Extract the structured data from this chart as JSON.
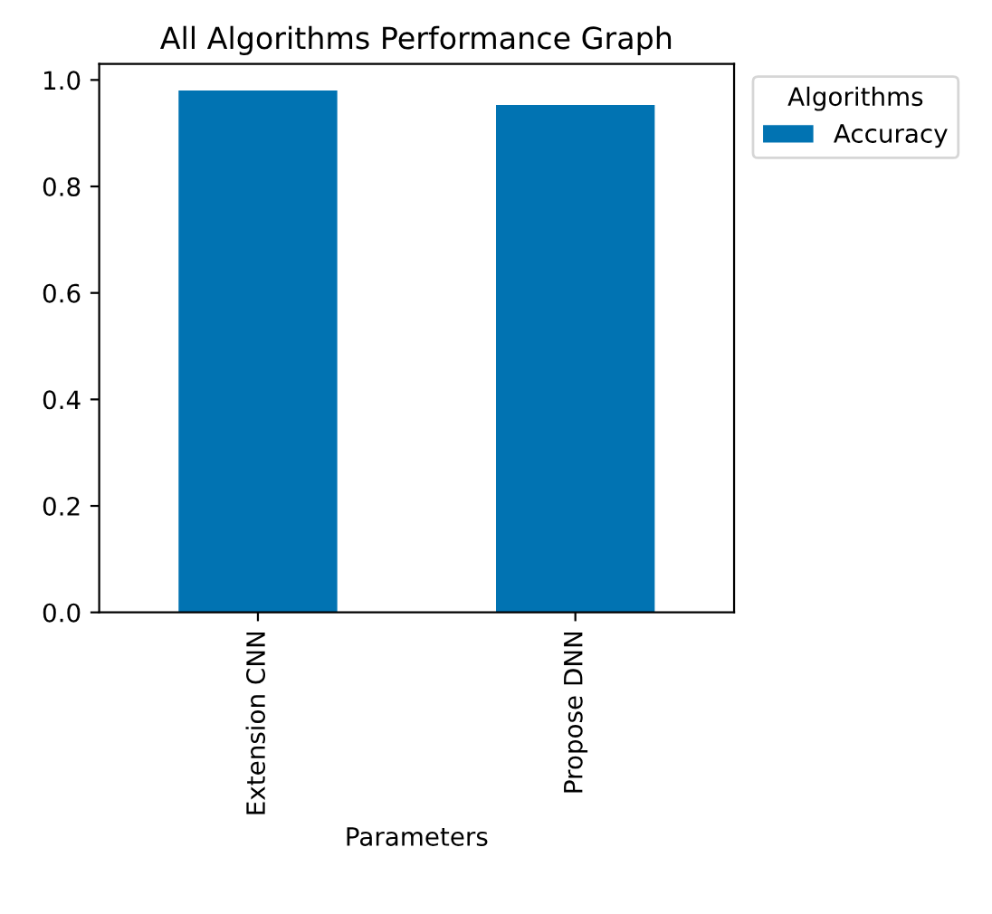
{
  "chart_data": {
    "type": "bar",
    "title": "All Algorithms Performance Graph",
    "xlabel": "Parameters",
    "legend_title": "Algorithms",
    "categories": [
      "Extension CNN",
      "Propose DNN"
    ],
    "series": [
      {
        "name": "Accuracy",
        "color": "#0173b2",
        "values": [
          0.98,
          0.953
        ]
      }
    ],
    "ylim": [
      0,
      1.03
    ],
    "yticks": [
      {
        "value": 0,
        "label": "0.0"
      },
      0.2,
      0.4,
      0.6,
      0.8,
      {
        "value": 1,
        "label": "1.0"
      }
    ],
    "grid": false,
    "legend": "top right"
  }
}
